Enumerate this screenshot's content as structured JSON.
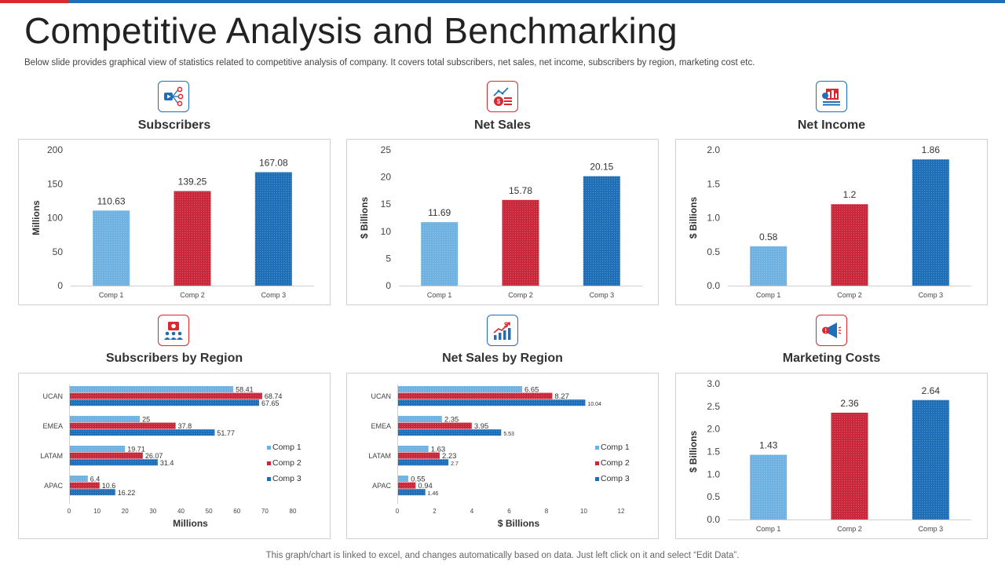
{
  "header": {
    "title": "Competitive Analysis and Benchmarking",
    "subtitle": "Below slide provides graphical view of statistics related to competitive analysis of company. It covers total subscribers, net sales, net income, subscribers by region, marketing cost etc."
  },
  "footer": {
    "note": "This graph/chart is linked to excel,  and changes automatically based on data. Just left click on it and select “Edit Data”."
  },
  "colors": {
    "comp1": "#6fb1e1",
    "comp2": "#c9283a",
    "comp3": "#1f6fb8",
    "accent_red": "#d9282f",
    "accent_blue": "#1f6fb8"
  },
  "icons": [
    "video-network-icon",
    "sales-chart-icon",
    "income-building-icon",
    "users-presentation-icon",
    "growth-chart-icon",
    "megaphone-icon"
  ],
  "chart_data": [
    {
      "id": "subscribers",
      "type": "bar",
      "title": "Subscribers",
      "categories": [
        "Comp 1",
        "Comp 2",
        "Comp 3"
      ],
      "values": [
        110.63,
        139.25,
        167.08
      ],
      "value_labels": [
        "110.63",
        "139.25",
        "167.08"
      ],
      "ylabel": "Millions",
      "ylim": [
        0,
        200
      ],
      "yticks": [
        0,
        50,
        100,
        150,
        200
      ],
      "ytick_labels": [
        "0",
        "50",
        "100",
        "150",
        "200"
      ]
    },
    {
      "id": "net_sales",
      "type": "bar",
      "title": "Net Sales",
      "categories": [
        "Comp 1",
        "Comp 2",
        "Comp 3"
      ],
      "values": [
        11.69,
        15.78,
        20.15
      ],
      "value_labels": [
        "11.69",
        "15.78",
        "20.15"
      ],
      "ylabel": "$ Billions",
      "ylim": [
        0,
        25
      ],
      "yticks": [
        0,
        5,
        10,
        15,
        20,
        25
      ],
      "ytick_labels": [
        "0",
        "5",
        "10",
        "15",
        "20",
        "25"
      ]
    },
    {
      "id": "net_income",
      "type": "bar",
      "title": "Net Income",
      "categories": [
        "Comp 1",
        "Comp 2",
        "Comp 3"
      ],
      "values": [
        0.58,
        1.2,
        1.86
      ],
      "value_labels": [
        "0.58",
        "1.2",
        "1.86"
      ],
      "ylabel": "$ Billions",
      "ylim": [
        0,
        2
      ],
      "yticks": [
        0,
        0.5,
        1,
        1.5,
        2
      ],
      "ytick_labels": [
        "0.0",
        "0.5",
        "1.0",
        "1.5",
        "2.0"
      ]
    },
    {
      "id": "subscribers_by_region",
      "type": "bar",
      "orientation": "horizontal",
      "title": "Subscribers by Region",
      "categories": [
        "UCAN",
        "EMEA",
        "LATAM",
        "APAC"
      ],
      "series": [
        {
          "name": "Comp 1",
          "values": [
            58.41,
            25,
            19.71,
            6.4
          ],
          "labels": [
            "58.41",
            "25",
            "19.71",
            "6.4"
          ]
        },
        {
          "name": "Comp 2",
          "values": [
            68.74,
            37.8,
            26.07,
            10.6
          ],
          "labels": [
            "68.74",
            "37.8",
            "26.07",
            "10.6"
          ]
        },
        {
          "name": "Comp 3",
          "values": [
            67.65,
            51.77,
            31.4,
            16.22
          ],
          "labels": [
            "67.65",
            "51.77",
            "31.4",
            "16.22"
          ]
        }
      ],
      "xlabel": "Millions",
      "xlim": [
        0,
        80
      ],
      "xticks": [
        0,
        10,
        20,
        30,
        40,
        50,
        60,
        70,
        80
      ],
      "xtick_labels": [
        "0",
        "10",
        "20",
        "30",
        "40",
        "50",
        "60",
        "70",
        "80"
      ],
      "legend": "right"
    },
    {
      "id": "net_sales_by_region",
      "type": "bar",
      "orientation": "horizontal",
      "title": "Net Sales by Region",
      "categories": [
        "UCAN",
        "EMEA",
        "LATAM",
        "APAC"
      ],
      "series": [
        {
          "name": "Comp 1",
          "values": [
            6.65,
            2.35,
            1.63,
            0.55
          ],
          "labels": [
            "6.65",
            "2.35",
            "1.63",
            "0.55"
          ]
        },
        {
          "name": "Comp 2",
          "values": [
            8.27,
            3.95,
            2.23,
            0.94
          ],
          "labels": [
            "8.27",
            "3.95",
            "2.23",
            "0.94"
          ]
        },
        {
          "name": "Comp 3",
          "values": [
            10.04,
            5.53,
            2.7,
            1.46
          ],
          "labels": [
            "10.04",
            "5.53",
            "2.7",
            "1.46"
          ]
        }
      ],
      "xlabel": "$ Billions",
      "xlim": [
        0,
        12
      ],
      "xticks": [
        0,
        2,
        4,
        6,
        8,
        10,
        12
      ],
      "xtick_labels": [
        "0",
        "2",
        "4",
        "6",
        "8",
        "10",
        "12"
      ],
      "legend": "right"
    },
    {
      "id": "marketing_costs",
      "type": "bar",
      "title": "Marketing Costs",
      "categories": [
        "Comp 1",
        "Comp 2",
        "Comp 3"
      ],
      "values": [
        1.43,
        2.36,
        2.64
      ],
      "value_labels": [
        "1.43",
        "2.36",
        "2.64"
      ],
      "ylabel": "$ Billions",
      "ylim": [
        0,
        3
      ],
      "yticks": [
        0,
        0.5,
        1,
        1.5,
        2,
        2.5,
        3
      ],
      "ytick_labels": [
        "0.0",
        "0.5",
        "1.0",
        "1.5",
        "2.0",
        "2.5",
        "3.0"
      ]
    }
  ]
}
